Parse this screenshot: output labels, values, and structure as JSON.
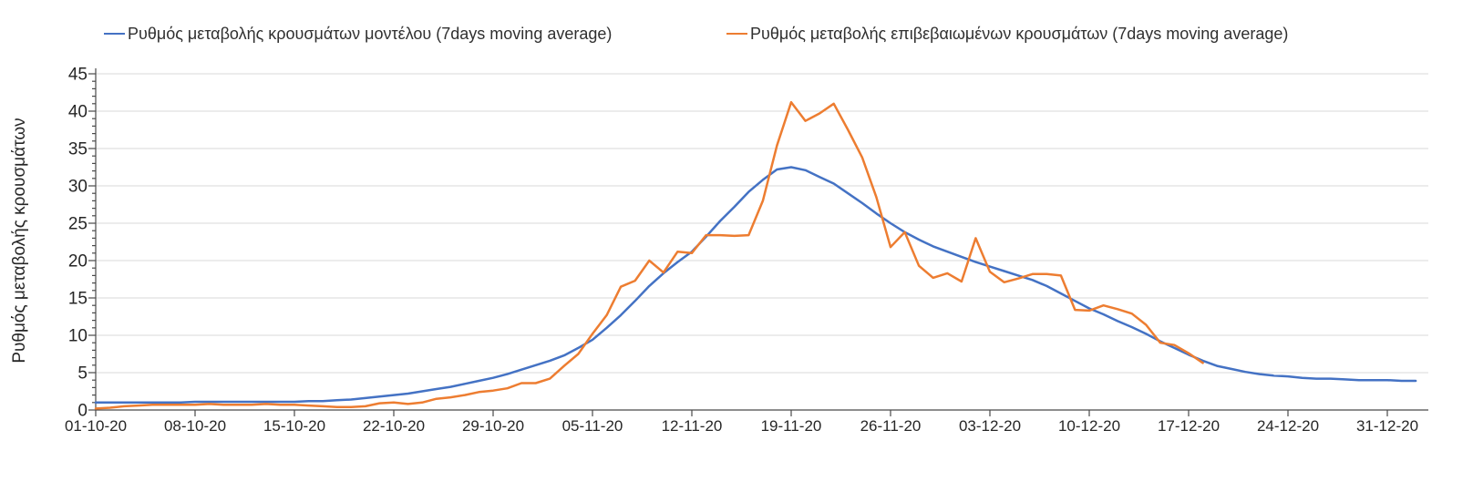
{
  "chart_data": {
    "type": "line",
    "title": "",
    "xlabel": "",
    "ylabel": "Ρυθμός μεταβολής κρουσμάτων",
    "ylim": [
      0,
      45
    ],
    "y_major_step": 5,
    "y_minor_step": 1,
    "y_tick_labels": [
      "0",
      "5",
      "10",
      "15",
      "20",
      "25",
      "30",
      "35",
      "40",
      "45"
    ],
    "grid": true,
    "legend_position": "top",
    "x_tick_labels": [
      "01-10-20",
      "08-10-20",
      "15-10-20",
      "22-10-20",
      "29-10-20",
      "05-11-20",
      "12-11-20",
      "19-11-20",
      "26-11-20",
      "03-12-20",
      "10-12-20",
      "17-12-20",
      "24-12-20",
      "31-12-20"
    ],
    "x_tick_days": [
      0,
      7,
      14,
      21,
      28,
      35,
      42,
      49,
      56,
      63,
      70,
      77,
      84,
      91
    ],
    "x_unit": "daily points, dates dd-mm-yy",
    "axis_color": "#4a4a4a",
    "gridline_color": "#d9d9d9",
    "text_color": "#262626",
    "series": [
      {
        "key": "model",
        "name": "Ρυθμός μεταβολής κρουσμάτων μοντέλου (7days moving average)",
        "color": "#4472C4",
        "start_day": 0,
        "values": [
          1.0,
          1.0,
          1.0,
          1.0,
          1.0,
          1.0,
          1.0,
          1.1,
          1.1,
          1.1,
          1.1,
          1.1,
          1.1,
          1.1,
          1.1,
          1.2,
          1.2,
          1.3,
          1.4,
          1.6,
          1.8,
          2.0,
          2.2,
          2.5,
          2.8,
          3.1,
          3.5,
          3.9,
          4.3,
          4.8,
          5.4,
          6.0,
          6.6,
          7.3,
          8.3,
          9.4,
          11.0,
          12.7,
          14.6,
          16.6,
          18.3,
          19.8,
          21.2,
          23.2,
          25.3,
          27.2,
          29.2,
          30.8,
          32.2,
          32.5,
          32.1,
          31.2,
          30.3,
          29.0,
          27.7,
          26.3,
          25.0,
          23.8,
          22.8,
          21.9,
          21.2,
          20.5,
          19.8,
          19.2,
          18.6,
          18.0,
          17.4,
          16.6,
          15.6,
          14.6,
          13.6,
          12.8,
          11.9,
          11.1,
          10.2,
          9.2,
          8.3,
          7.4,
          6.6,
          5.9,
          5.5,
          5.1,
          4.8,
          4.6,
          4.5,
          4.3,
          4.2,
          4.2,
          4.1,
          4.0,
          4.0,
          4.0,
          3.9,
          3.9
        ]
      },
      {
        "key": "confirmed",
        "name": "Ρυθμός μεταβολής επιβεβαιωμένων κρουσμάτων (7days moving average)",
        "color": "#ED7D31",
        "start_day": 0,
        "values": [
          0.2,
          0.3,
          0.5,
          0.6,
          0.7,
          0.7,
          0.7,
          0.7,
          0.8,
          0.7,
          0.7,
          0.7,
          0.8,
          0.7,
          0.7,
          0.6,
          0.5,
          0.4,
          0.4,
          0.5,
          0.9,
          1.0,
          0.8,
          1.0,
          1.5,
          1.7,
          2.0,
          2.4,
          2.6,
          2.9,
          3.6,
          3.6,
          4.2,
          5.9,
          7.5,
          10.2,
          12.7,
          16.5,
          17.3,
          20.0,
          18.4,
          21.2,
          21.0,
          23.4,
          23.4,
          23.3,
          23.4,
          28.0,
          35.4,
          41.2,
          38.7,
          39.7,
          41.0,
          37.5,
          33.8,
          28.5,
          21.8,
          23.8,
          19.3,
          17.7,
          18.3,
          17.2,
          23.0,
          18.5,
          17.1,
          17.6,
          18.2,
          18.2,
          18.0,
          13.4,
          13.3,
          14.0,
          13.5,
          12.9,
          11.4,
          9.0,
          8.7,
          7.6,
          6.3
        ]
      }
    ]
  }
}
